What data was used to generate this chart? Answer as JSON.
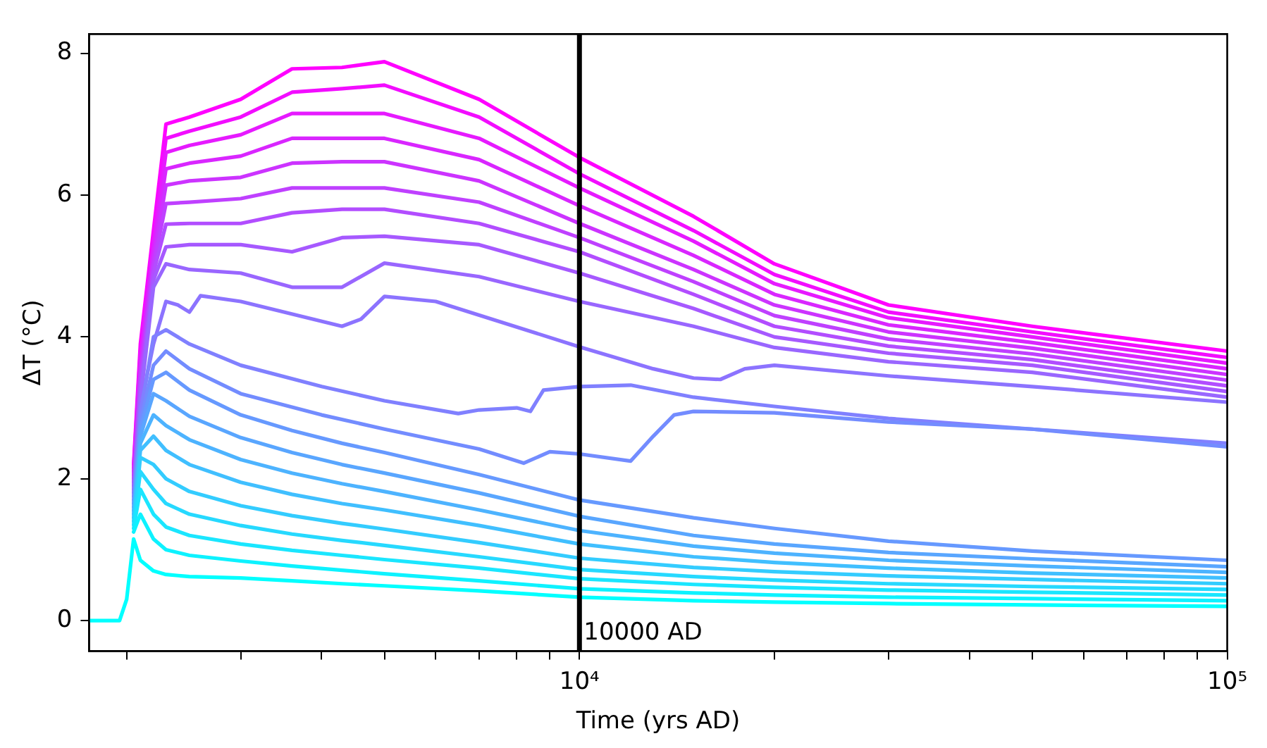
{
  "chart_data": {
    "type": "line",
    "xlabel": "Time (yrs AD)",
    "ylabel": "ΔT (°C)",
    "log": "x",
    "xlim": [
      1750,
      100000
    ],
    "ylim": [
      -0.43,
      8.27
    ],
    "xticks": [
      {
        "value": 2000,
        "label": null
      },
      {
        "value": 3000,
        "label": null
      },
      {
        "value": 4000,
        "label": null
      },
      {
        "value": 5000,
        "label": null
      },
      {
        "value": 6000,
        "label": null
      },
      {
        "value": 7000,
        "label": null
      },
      {
        "value": 8000,
        "label": null
      },
      {
        "value": 9000,
        "label": null
      },
      {
        "value": 10000,
        "label": "10⁴"
      },
      {
        "value": 20000,
        "label": null
      },
      {
        "value": 30000,
        "label": null
      },
      {
        "value": 40000,
        "label": null
      },
      {
        "value": 50000,
        "label": null
      },
      {
        "value": 60000,
        "label": null
      },
      {
        "value": 70000,
        "label": null
      },
      {
        "value": 80000,
        "label": null
      },
      {
        "value": 90000,
        "label": null
      },
      {
        "value": 100000,
        "label": "10⁵"
      }
    ],
    "yticks": [
      0,
      2,
      4,
      6,
      8
    ],
    "grid": false,
    "legend": false,
    "marker": "none",
    "line_style": "solid",
    "ref_lines": [
      {
        "axis": "x",
        "value": 10000,
        "label": "10000 AD",
        "color": "#000000"
      }
    ],
    "x": [
      1750,
      1950,
      2000,
      2050,
      2100,
      2200,
      2300,
      2500,
      3000,
      3600,
      4300,
      5000,
      7000,
      10000,
      15000,
      20000,
      30000,
      50000,
      100000
    ],
    "series": [
      {
        "color": "#00ffff",
        "values": [
          0,
          0,
          0.3,
          1.15,
          0.85,
          0.7,
          0.65,
          0.62,
          0.6,
          0.56,
          0.52,
          0.49,
          0.42,
          0.33,
          0.28,
          0.26,
          0.24,
          0.22,
          0.2
        ]
      },
      {
        "color": "#0df2ff",
        "values": [
          null,
          null,
          null,
          1.25,
          1.5,
          1.15,
          1.0,
          0.92,
          0.84,
          0.77,
          0.71,
          0.66,
          0.56,
          0.45,
          0.39,
          0.36,
          0.33,
          0.31,
          0.28
        ]
      },
      {
        "color": "#1ae6ff",
        "values": [
          null,
          null,
          null,
          1.3,
          1.85,
          1.5,
          1.32,
          1.2,
          1.08,
          0.99,
          0.92,
          0.86,
          0.74,
          0.59,
          0.51,
          0.47,
          0.43,
          0.4,
          0.36
        ]
      },
      {
        "color": "#26d9ff",
        "values": [
          null,
          null,
          null,
          1.35,
          2.1,
          1.85,
          1.65,
          1.5,
          1.34,
          1.22,
          1.13,
          1.06,
          0.9,
          0.72,
          0.62,
          0.57,
          0.52,
          0.48,
          0.44
        ]
      },
      {
        "color": "#33ccff",
        "values": [
          null,
          null,
          null,
          1.4,
          2.3,
          2.2,
          2.0,
          1.82,
          1.62,
          1.48,
          1.37,
          1.29,
          1.1,
          0.88,
          0.75,
          0.69,
          0.63,
          0.58,
          0.52
        ]
      },
      {
        "color": "#40bfff",
        "values": [
          null,
          null,
          null,
          1.45,
          2.4,
          2.6,
          2.4,
          2.2,
          1.95,
          1.78,
          1.65,
          1.56,
          1.34,
          1.08,
          0.9,
          0.82,
          0.74,
          0.67,
          0.6
        ]
      },
      {
        "color": "#4db3ff",
        "values": [
          null,
          null,
          null,
          1.5,
          2.5,
          2.9,
          2.75,
          2.55,
          2.27,
          2.08,
          1.93,
          1.82,
          1.56,
          1.27,
          1.05,
          0.95,
          0.85,
          0.77,
          0.68
        ]
      },
      {
        "color": "#59a6ff",
        "values": [
          null,
          null,
          null,
          1.55,
          2.6,
          3.2,
          3.1,
          2.88,
          2.58,
          2.37,
          2.2,
          2.08,
          1.8,
          1.47,
          1.2,
          1.08,
          0.96,
          0.87,
          0.76
        ]
      },
      {
        "color": "#6699ff",
        "values": [
          null,
          null,
          null,
          1.6,
          2.7,
          3.4,
          3.5,
          3.25,
          2.9,
          2.68,
          2.5,
          2.37,
          2.06,
          1.7,
          1.45,
          1.3,
          1.12,
          0.98,
          0.85
        ]
      },
      {
        "color": "#738cff",
        "x": [
          2050,
          2100,
          2200,
          2300,
          2500,
          3000,
          4000,
          5000,
          7000,
          8200,
          9000,
          10000,
          12000,
          13000,
          14000,
          15000,
          20000,
          30000,
          50000,
          100000
        ],
        "values": [
          1.65,
          2.8,
          3.6,
          3.8,
          3.55,
          3.2,
          2.9,
          2.7,
          2.42,
          2.22,
          2.38,
          2.35,
          2.25,
          2.6,
          2.9,
          2.95,
          2.93,
          2.8,
          2.7,
          2.45
        ]
      },
      {
        "color": "#8080ff",
        "x": [
          2050,
          2100,
          2200,
          2300,
          2500,
          3000,
          4000,
          5000,
          6500,
          7000,
          8000,
          8400,
          8800,
          10000,
          12000,
          15000,
          20000,
          30000,
          50000,
          100000
        ],
        "values": [
          1.7,
          2.9,
          4.0,
          4.1,
          3.9,
          3.6,
          3.3,
          3.1,
          2.92,
          2.97,
          3.0,
          2.95,
          3.25,
          3.3,
          3.32,
          3.15,
          3.02,
          2.85,
          2.7,
          2.5
        ]
      },
      {
        "color": "#8c73ff",
        "x": [
          2050,
          2100,
          2200,
          2300,
          2400,
          2500,
          2600,
          3000,
          4300,
          4600,
          5000,
          6000,
          10000,
          13000,
          15000,
          16500,
          18000,
          20000,
          30000,
          50000,
          100000
        ],
        "values": [
          1.75,
          3.0,
          3.9,
          4.5,
          4.45,
          4.35,
          4.58,
          4.5,
          4.15,
          4.25,
          4.57,
          4.5,
          3.86,
          3.55,
          3.42,
          3.4,
          3.55,
          3.6,
          3.45,
          3.3,
          3.08
        ]
      },
      {
        "color": "#9966ff",
        "values": [
          null,
          null,
          null,
          1.8,
          3.1,
          4.7,
          5.03,
          4.95,
          4.9,
          4.7,
          4.7,
          5.04,
          4.85,
          4.5,
          4.15,
          3.85,
          3.65,
          3.5,
          3.15
        ]
      },
      {
        "color": "#a659ff",
        "values": [
          null,
          null,
          null,
          1.85,
          3.2,
          4.8,
          5.27,
          5.3,
          5.3,
          5.2,
          5.4,
          5.42,
          5.3,
          4.9,
          4.4,
          4.0,
          3.77,
          3.6,
          3.23
        ]
      },
      {
        "color": "#b24dff",
        "values": [
          null,
          null,
          null,
          1.9,
          3.3,
          4.9,
          5.59,
          5.6,
          5.6,
          5.75,
          5.8,
          5.8,
          5.6,
          5.2,
          4.6,
          4.15,
          3.87,
          3.68,
          3.31
        ]
      },
      {
        "color": "#bf40ff",
        "values": [
          null,
          null,
          null,
          1.95,
          3.4,
          5.0,
          5.88,
          5.9,
          5.95,
          6.1,
          6.1,
          6.1,
          5.9,
          5.4,
          4.78,
          4.3,
          3.97,
          3.76,
          3.39
        ]
      },
      {
        "color": "#cc33ff",
        "values": [
          null,
          null,
          null,
          2.0,
          3.5,
          5.1,
          6.14,
          6.2,
          6.25,
          6.45,
          6.47,
          6.47,
          6.2,
          5.6,
          4.95,
          4.45,
          4.07,
          3.84,
          3.47
        ]
      },
      {
        "color": "#d926ff",
        "values": [
          null,
          null,
          null,
          2.05,
          3.6,
          5.2,
          6.37,
          6.45,
          6.55,
          6.8,
          6.8,
          6.8,
          6.5,
          5.85,
          5.15,
          4.6,
          4.17,
          3.92,
          3.55
        ]
      },
      {
        "color": "#e61aff",
        "values": [
          null,
          null,
          null,
          2.1,
          3.7,
          5.3,
          6.6,
          6.7,
          6.85,
          7.15,
          7.15,
          7.15,
          6.8,
          6.1,
          5.35,
          4.75,
          4.27,
          4.0,
          3.63
        ]
      },
      {
        "color": "#f20dff",
        "values": [
          null,
          null,
          null,
          2.15,
          3.8,
          5.4,
          6.8,
          6.9,
          7.1,
          7.45,
          7.5,
          7.55,
          7.1,
          6.3,
          5.5,
          4.88,
          4.35,
          4.07,
          3.71
        ]
      },
      {
        "color": "#ff00ff",
        "values": [
          null,
          null,
          null,
          2.2,
          3.9,
          5.5,
          7.0,
          7.1,
          7.35,
          7.78,
          7.8,
          7.88,
          7.35,
          6.53,
          5.7,
          5.03,
          4.45,
          4.15,
          3.8
        ]
      }
    ]
  }
}
